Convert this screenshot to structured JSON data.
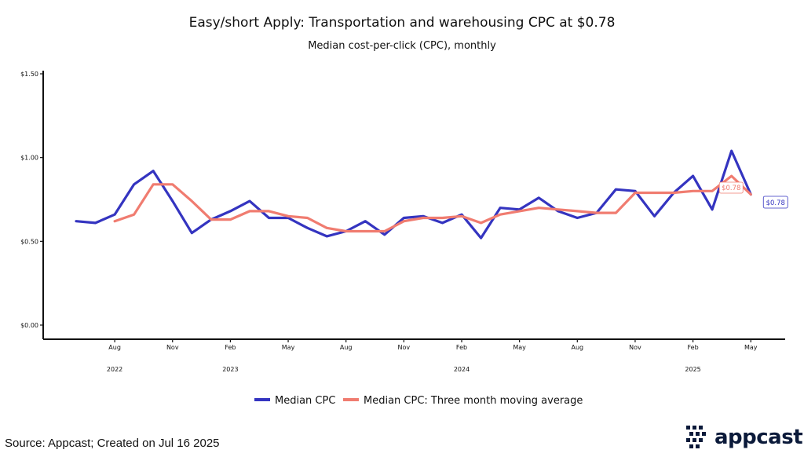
{
  "chart_data": {
    "type": "line",
    "title": "Easy/short Apply: Transportation and warehousing CPC at $0.78",
    "subtitle": "Median cost-per-click (CPC), monthly",
    "ylim": [
      0,
      1.5
    ],
    "y_ticks": [
      {
        "value": 0.0,
        "label": "$0.00"
      },
      {
        "value": 0.5,
        "label": "$0.50"
      },
      {
        "value": 1.0,
        "label": "$1.00"
      },
      {
        "value": 1.5,
        "label": "$1.50"
      }
    ],
    "x_months": [
      "2022-06",
      "2022-07",
      "2022-08",
      "2022-09",
      "2022-10",
      "2022-11",
      "2022-12",
      "2023-01",
      "2023-02",
      "2023-03",
      "2023-04",
      "2023-05",
      "2023-06",
      "2023-07",
      "2023-08",
      "2023-09",
      "2023-10",
      "2023-11",
      "2023-12",
      "2024-01",
      "2024-02",
      "2024-03",
      "2024-04",
      "2024-05",
      "2024-06",
      "2024-07",
      "2024-08",
      "2024-09",
      "2024-10",
      "2024-11",
      "2024-12",
      "2025-01",
      "2025-02",
      "2025-03",
      "2025-04",
      "2025-05",
      "2025-06"
    ],
    "x_tick_labels": [
      {
        "month": "2022-08",
        "label": "Aug"
      },
      {
        "month": "2022-11",
        "label": "Nov"
      },
      {
        "month": "2023-02",
        "label": "Feb"
      },
      {
        "month": "2023-05",
        "label": "May"
      },
      {
        "month": "2023-08",
        "label": "Aug"
      },
      {
        "month": "2023-11",
        "label": "Nov"
      },
      {
        "month": "2024-02",
        "label": "Feb"
      },
      {
        "month": "2024-05",
        "label": "May"
      },
      {
        "month": "2024-08",
        "label": "Aug"
      },
      {
        "month": "2024-11",
        "label": "Nov"
      },
      {
        "month": "2025-02",
        "label": "Feb"
      },
      {
        "month": "2025-05",
        "label": "May"
      }
    ],
    "year_labels": [
      {
        "month": "2022-08",
        "label": "2022"
      },
      {
        "month": "2023-02",
        "label": "2023"
      },
      {
        "month": "2024-02",
        "label": "2024"
      },
      {
        "month": "2025-02",
        "label": "2025"
      }
    ],
    "series": [
      {
        "name": "Median CPC",
        "color": "#3434c0",
        "values": [
          0.62,
          0.61,
          0.66,
          0.84,
          0.92,
          0.74,
          0.55,
          0.63,
          0.68,
          0.74,
          0.64,
          0.64,
          0.58,
          0.53,
          0.56,
          0.62,
          0.54,
          0.64,
          0.65,
          0.61,
          0.66,
          0.52,
          0.7,
          0.69,
          0.76,
          0.68,
          0.64,
          0.67,
          0.81,
          0.8,
          0.65,
          0.79,
          0.89,
          0.69,
          1.04,
          0.78,
          null
        ],
        "end_label": "$0.78"
      },
      {
        "name": "Median CPC: Three month moving average",
        "color": "#f07c70",
        "values": [
          null,
          null,
          0.62,
          0.66,
          0.84,
          0.84,
          0.74,
          0.63,
          0.63,
          0.68,
          0.68,
          0.65,
          0.64,
          0.58,
          0.56,
          0.56,
          0.56,
          0.62,
          0.64,
          0.64,
          0.65,
          0.61,
          0.66,
          0.68,
          0.7,
          0.69,
          0.68,
          0.67,
          0.67,
          0.79,
          0.79,
          0.79,
          0.8,
          0.8,
          0.89,
          0.78,
          null
        ],
        "end_label": "$0.78"
      }
    ],
    "legend_position": "bottom",
    "grid": false
  },
  "footer": {
    "source": "Source: Appcast; Created on Jul 16 2025",
    "brand": "appcast"
  },
  "colors": {
    "brand": "#0b1a3a"
  }
}
